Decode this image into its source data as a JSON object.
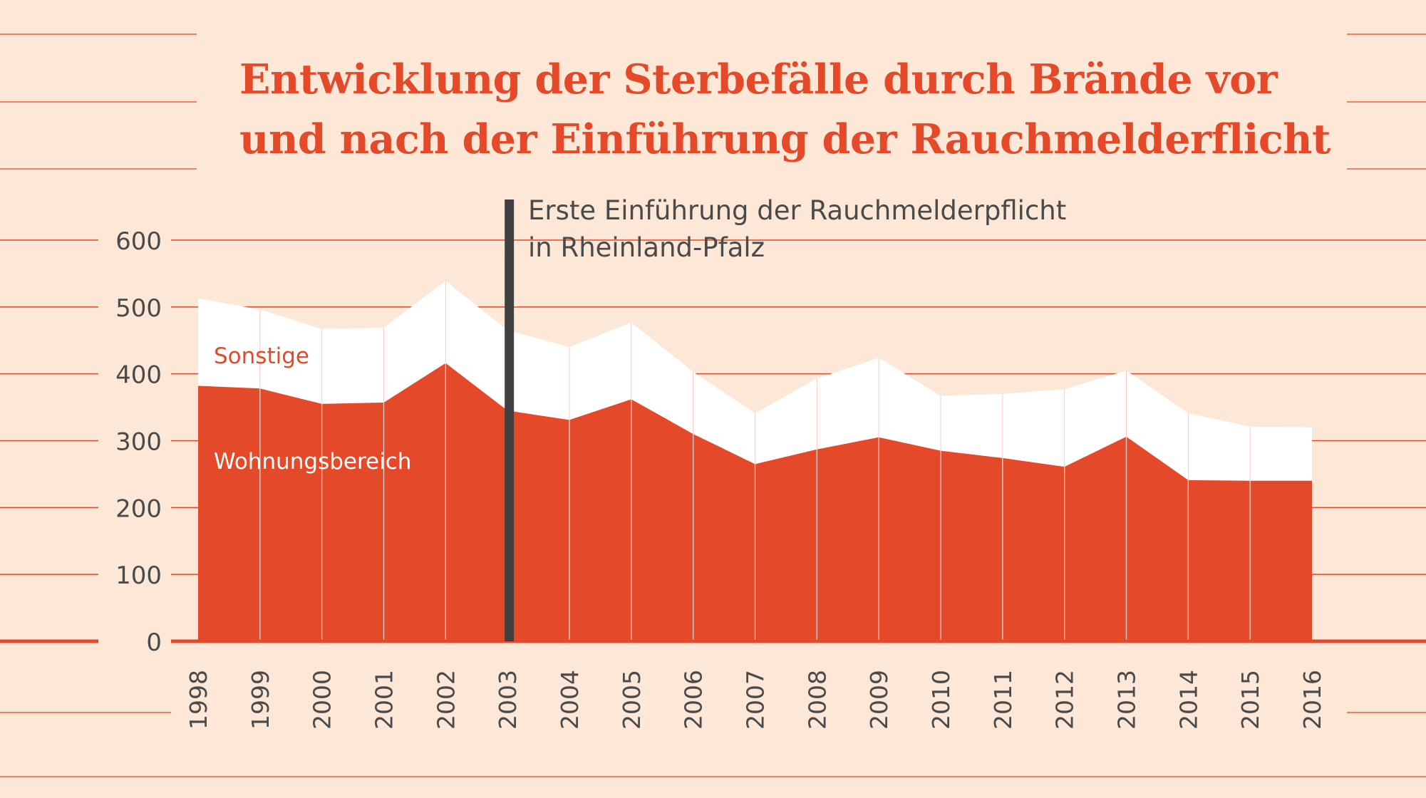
{
  "chart_data": {
    "type": "area",
    "stacked": true,
    "title_lines": [
      "Entwicklung der Sterbefälle durch Brände vor",
      "und nach der Einführung der Rauchmelderflicht"
    ],
    "xlabel": "",
    "ylabel": "",
    "ylim": [
      0,
      600
    ],
    "yticks": [
      0,
      100,
      200,
      300,
      400,
      500,
      600
    ],
    "x": [
      "1998",
      "1999",
      "2000",
      "2001",
      "2002",
      "2003",
      "2004",
      "2005",
      "2006",
      "2007",
      "2008",
      "2009",
      "2010",
      "2011",
      "2012",
      "2013",
      "2014",
      "2015",
      "2016"
    ],
    "series": [
      {
        "name": "Wohnungsbereich",
        "values": [
          382,
          378,
          355,
          357,
          416,
          345,
          331,
          362,
          310,
          265,
          287,
          305,
          285,
          274,
          261,
          306,
          241,
          240,
          240
        ]
      },
      {
        "name": "Sonstige",
        "values": [
          131,
          118,
          112,
          112,
          123,
          120,
          109,
          115,
          93,
          76,
          106,
          119,
          82,
          96,
          116,
          99,
          100,
          81,
          80
        ]
      }
    ],
    "annotation": {
      "x": "2003",
      "lines": [
        "Erste Einführung der Rauchmelderpflicht",
        "in Rheinland-Pfalz"
      ]
    },
    "colors": {
      "background": "#fde8d7",
      "accent": "#e4492a",
      "upper_band": "#ffffff",
      "marker": "#404040",
      "text": "#4a4a4a"
    }
  }
}
